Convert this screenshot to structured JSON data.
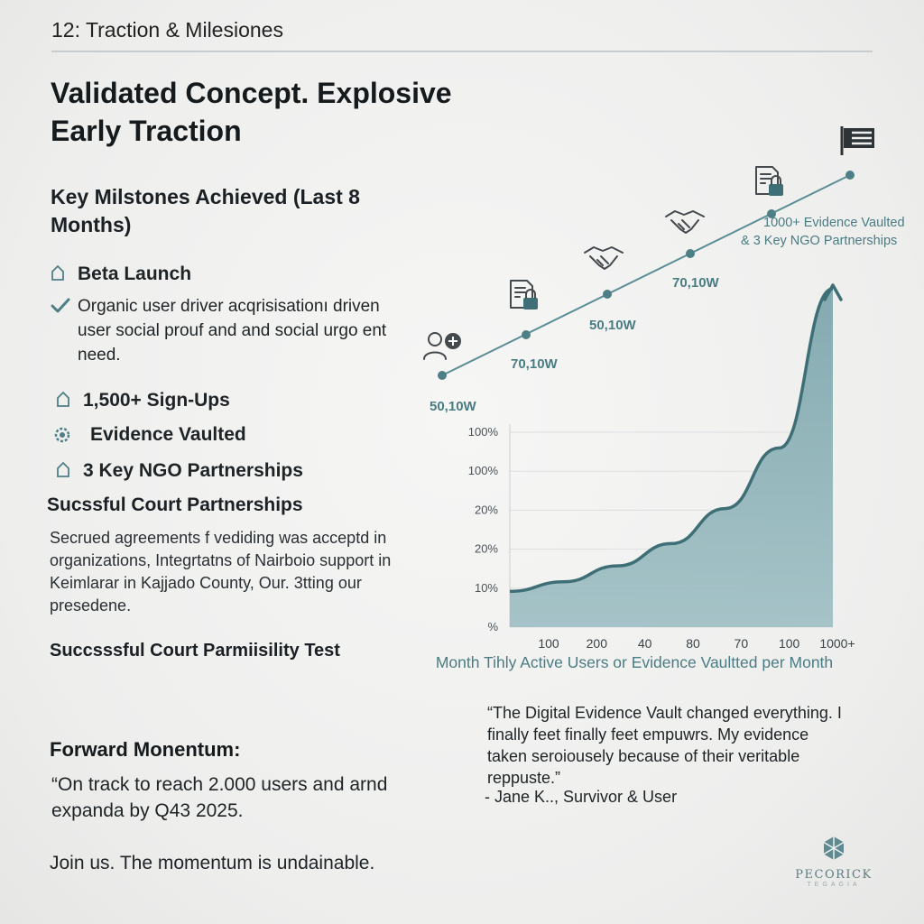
{
  "slide_label": "12: Traction & Milesiones",
  "headline": "Validated Concept. Explosive Early Traction",
  "milestones": {
    "title": "Key Milstones Achieved (Last 8 Months)",
    "items": [
      {
        "icon": "home-outline-icon",
        "text": "Beta Launch",
        "style": "bold-ish"
      },
      {
        "icon": "checkmark-icon",
        "text": "Organic user driver acqrisisationı driven user social prouf and and social urgo ent need.",
        "style": "plain"
      },
      {
        "icon": "home-outline-icon",
        "text": "1,500+ Sign-Ups",
        "style": "bold"
      },
      {
        "icon": "gear-badge-icon",
        "text": "Evidence Vaulted",
        "style": "bold"
      },
      {
        "icon": "home-outline-icon",
        "text": "3 Key NGO Partnerships",
        "style": "bold"
      }
    ]
  },
  "court": {
    "heading": "Sucssful Court Partnerships",
    "body": "Secrued agreements f vediding was acceptd in organizations, Integrtatns of Nairboio support in Keimlarar in Kajjado County, Our. 3tting our presedene.",
    "permissibility": "Succsssful Court Parmiisility Test"
  },
  "forward": {
    "heading": "Forward Monentum:",
    "quote": "“On track to reach 2.000 users and arnd expanda by Q43 2025.",
    "join": "Join us. The momentum is undainable."
  },
  "timeline": {
    "labels": [
      "50,10W",
      "70,10W",
      "50,10W",
      "70,10W"
    ],
    "callout_line1": "1000+ Evidence Vaulted",
    "callout_line2": "& 3 Key NGO Partnerships",
    "icons": [
      "user-add-icon",
      "document-lock-icon",
      "handshake-icon",
      "handshake-icon",
      "document-lock-icon",
      "finish-flag-icon"
    ]
  },
  "chart_data": {
    "type": "area",
    "categories": [
      "100",
      "200",
      "40",
      "80",
      "70",
      "100",
      "1000+"
    ],
    "yticks": [
      "100%",
      "100%",
      "20%",
      "20%",
      "10%",
      "%"
    ],
    "values": [
      5,
      8,
      13,
      20,
      31,
      50,
      100
    ],
    "xlabel": "Month Tihly Active Users or Evidence Vaultted per Month",
    "grid": "horizontal"
  },
  "quote": {
    "text": "“The Digital Evidence Vault changed everything. I finally feet finally feet empuwrs. My evidence taken seroiousely because of their veritable reppuste.”",
    "author": "- Jane K.., Survivor & User"
  },
  "logo": {
    "name": "PECORICK",
    "tagline": "TEGAGIA"
  },
  "colors": {
    "accent": "#4f7f86",
    "area_fill": "#7fa8ae",
    "area_line": "#3f6f76",
    "timeline": "#5b8e96",
    "label": "#4a7c83"
  }
}
